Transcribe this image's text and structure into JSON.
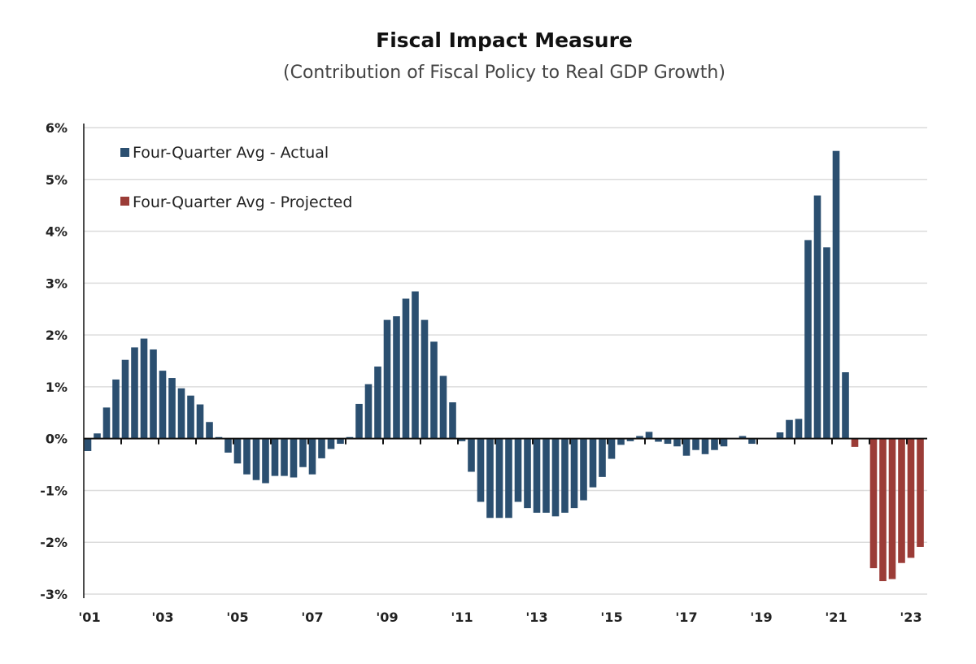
{
  "chart_data": {
    "type": "bar",
    "title": "Fiscal Impact Measure",
    "subtitle": "(Contribution of Fiscal Policy to Real GDP Growth)",
    "xlabel": "",
    "ylabel": "",
    "ylim": [
      -3,
      6
    ],
    "y_ticks": [
      "6%",
      "5%",
      "4%",
      "3%",
      "2%",
      "1%",
      "0%",
      "-1%",
      "-2%",
      "-3%"
    ],
    "y_tick_values": [
      6,
      5,
      4,
      3,
      2,
      1,
      0,
      -1,
      -2,
      -3
    ],
    "x_tick_labels": [
      "'01",
      "'03",
      "'05",
      "'07",
      "'09",
      "'11",
      "'13",
      "'15",
      "'17",
      "'19",
      "'21",
      "'23"
    ],
    "grid": true,
    "legend_position": "top-left",
    "categories": [
      "2001Q1",
      "2001Q2",
      "2001Q3",
      "2001Q4",
      "2002Q1",
      "2002Q2",
      "2002Q3",
      "2002Q4",
      "2003Q1",
      "2003Q2",
      "2003Q3",
      "2003Q4",
      "2004Q1",
      "2004Q2",
      "2004Q3",
      "2004Q4",
      "2005Q1",
      "2005Q2",
      "2005Q3",
      "2005Q4",
      "2006Q1",
      "2006Q2",
      "2006Q3",
      "2006Q4",
      "2007Q1",
      "2007Q2",
      "2007Q3",
      "2007Q4",
      "2008Q1",
      "2008Q2",
      "2008Q3",
      "2008Q4",
      "2009Q1",
      "2009Q2",
      "2009Q3",
      "2009Q4",
      "2010Q1",
      "2010Q2",
      "2010Q3",
      "2010Q4",
      "2011Q1",
      "2011Q2",
      "2011Q3",
      "2011Q4",
      "2012Q1",
      "2012Q2",
      "2012Q3",
      "2012Q4",
      "2013Q1",
      "2013Q2",
      "2013Q3",
      "2013Q4",
      "2014Q1",
      "2014Q2",
      "2014Q3",
      "2014Q4",
      "2015Q1",
      "2015Q2",
      "2015Q3",
      "2015Q4",
      "2016Q1",
      "2016Q2",
      "2016Q3",
      "2016Q4",
      "2017Q1",
      "2017Q2",
      "2017Q3",
      "2017Q4",
      "2018Q1",
      "2018Q2",
      "2018Q3",
      "2018Q4",
      "2019Q1",
      "2019Q2",
      "2019Q3",
      "2019Q4",
      "2020Q1",
      "2020Q2",
      "2020Q3",
      "2020Q4",
      "2021Q1",
      "2021Q2",
      "2021Q3",
      "2021Q4",
      "2022Q1",
      "2022Q2",
      "2022Q3",
      "2022Q4",
      "2023Q1",
      "2023Q2"
    ],
    "series": [
      {
        "name": "Four-Quarter Avg - Actual",
        "color": "#2b4f70",
        "values": [
          -0.24,
          0.1,
          0.6,
          1.14,
          1.52,
          1.76,
          1.93,
          1.72,
          1.31,
          1.17,
          0.97,
          0.83,
          0.66,
          0.32,
          0.03,
          -0.27,
          -0.48,
          -0.69,
          -0.8,
          -0.86,
          -0.72,
          -0.72,
          -0.75,
          -0.55,
          -0.69,
          -0.38,
          -0.2,
          -0.1,
          0.03,
          0.67,
          1.05,
          1.39,
          2.29,
          2.36,
          2.7,
          2.84,
          2.29,
          1.87,
          1.21,
          0.7,
          -0.05,
          -0.64,
          -1.22,
          -1.53,
          -1.53,
          -1.53,
          -1.22,
          -1.34,
          -1.43,
          -1.43,
          -1.5,
          -1.43,
          -1.34,
          -1.19,
          -0.94,
          -0.74,
          -0.39,
          -0.12,
          -0.05,
          0.05,
          0.13,
          -0.06,
          -0.1,
          -0.15,
          -0.33,
          -0.22,
          -0.3,
          -0.22,
          -0.15,
          0,
          0.05,
          -0.1,
          0,
          0,
          0.12,
          0.36,
          0.38,
          3.83,
          4.69,
          3.69,
          5.55,
          1.28,
          null,
          null,
          null,
          null,
          null,
          null,
          null,
          null
        ]
      },
      {
        "name": "Four-Quarter Avg - Projected",
        "color": "#9b3c37",
        "values": [
          null,
          null,
          null,
          null,
          null,
          null,
          null,
          null,
          null,
          null,
          null,
          null,
          null,
          null,
          null,
          null,
          null,
          null,
          null,
          null,
          null,
          null,
          null,
          null,
          null,
          null,
          null,
          null,
          null,
          null,
          null,
          null,
          null,
          null,
          null,
          null,
          null,
          null,
          null,
          null,
          null,
          null,
          null,
          null,
          null,
          null,
          null,
          null,
          null,
          null,
          null,
          null,
          null,
          null,
          null,
          null,
          null,
          null,
          null,
          null,
          null,
          null,
          null,
          null,
          null,
          null,
          null,
          null,
          null,
          null,
          null,
          null,
          null,
          null,
          null,
          null,
          null,
          null,
          null,
          null,
          null,
          null,
          -0.16,
          0,
          -2.5,
          -2.75,
          -2.71,
          -2.4,
          -2.3,
          -2.09
        ]
      }
    ]
  }
}
